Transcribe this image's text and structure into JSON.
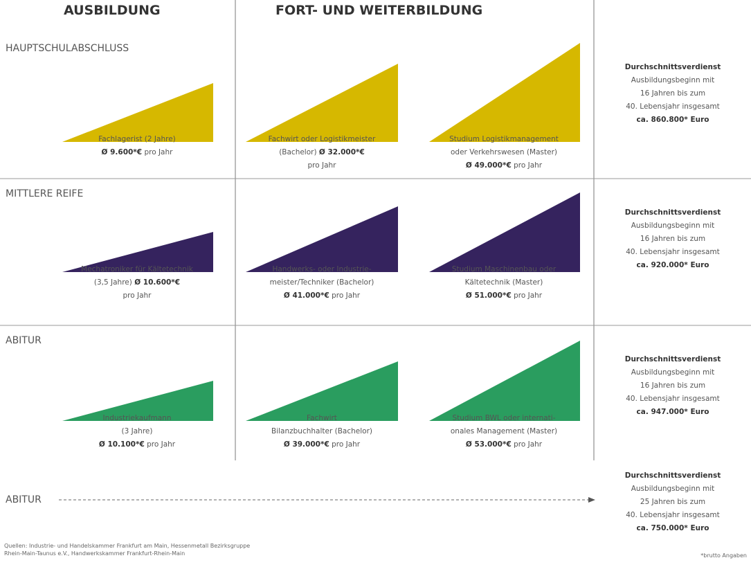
{
  "header": {
    "col1": "AUSBILDUNG",
    "col2": "FORT- UND WEITERBILDUNG"
  },
  "rows": [
    {
      "label": "HAUPTSCHULABSCHLUSS",
      "color": "#d6b800",
      "cells": [
        {
          "lines": [
            [
              {
                "text": "Fachlagerist (2 Jahre)",
                "bold": false
              }
            ],
            [
              {
                "text": "Ø 9.600*€",
                "bold": true
              },
              {
                "text": " pro Jahr",
                "bold": false
              }
            ]
          ]
        },
        {
          "lines": [
            [
              {
                "text": "Fachwirt oder Logistikmeister",
                "bold": false
              }
            ],
            [
              {
                "text": "(Bachelor) ",
                "bold": false
              },
              {
                "text": "Ø 32.000*€",
                "bold": true
              }
            ],
            [
              {
                "text": "pro Jahr",
                "bold": false
              }
            ]
          ]
        },
        {
          "lines": [
            [
              {
                "text": "Studium Logistikmanagement",
                "bold": false
              }
            ],
            [
              {
                "text": "oder Verkehrswesen (Master)",
                "bold": false
              }
            ],
            [
              {
                "text": "Ø 49.000*€",
                "bold": true
              },
              {
                "text": " pro Jahr",
                "bold": false
              }
            ]
          ]
        }
      ],
      "summary": [
        [
          {
            "text": "Durchschnittsverdienst",
            "bold": true
          }
        ],
        [
          {
            "text": "Ausbildungsbeginn mit",
            "bold": false
          }
        ],
        [
          {
            "text": "16 Jahren bis zum",
            "bold": false
          }
        ],
        [
          {
            "text": "40. Lebensjahr insgesamt",
            "bold": false
          }
        ],
        [
          {
            "text": "ca. 860.800* Euro",
            "bold": true
          }
        ]
      ]
    },
    {
      "label": "MITTLERE REIFE",
      "color": "#35235e",
      "cells": [
        {
          "lines": [
            [
              {
                "text": "Mechatroniker für Kältetechnik",
                "bold": false
              }
            ],
            [
              {
                "text": "(3,5 Jahre) ",
                "bold": false
              },
              {
                "text": "Ø 10.600*€",
                "bold": true
              }
            ],
            [
              {
                "text": "pro Jahr",
                "bold": false
              }
            ]
          ]
        },
        {
          "lines": [
            [
              {
                "text": "Handwerks- oder Industrie-",
                "bold": false
              }
            ],
            [
              {
                "text": "meister/Techniker (Bachelor)",
                "bold": false
              }
            ],
            [
              {
                "text": "Ø 41.000*€",
                "bold": true
              },
              {
                "text": " pro Jahr",
                "bold": false
              }
            ]
          ]
        },
        {
          "lines": [
            [
              {
                "text": "Studium Maschinenbau oder",
                "bold": false
              }
            ],
            [
              {
                "text": "Kältetechnik (Master)",
                "bold": false
              }
            ],
            [
              {
                "text": "Ø 51.000*€",
                "bold": true
              },
              {
                "text": " pro Jahr",
                "bold": false
              }
            ]
          ]
        }
      ],
      "summary": [
        [
          {
            "text": "Durchschnittsverdienst",
            "bold": true
          }
        ],
        [
          {
            "text": "Ausbildungsbeginn mit",
            "bold": false
          }
        ],
        [
          {
            "text": "16 Jahren bis zum",
            "bold": false
          }
        ],
        [
          {
            "text": "40. Lebensjahr insgesamt",
            "bold": false
          }
        ],
        [
          {
            "text": "ca. 920.000* Euro",
            "bold": true
          }
        ]
      ]
    },
    {
      "label": "ABITUR",
      "color": "#2a9d5f",
      "cells": [
        {
          "lines": [
            [
              {
                "text": "Industriekaufmann",
                "bold": false
              }
            ],
            [
              {
                "text": "(3 Jahre)",
                "bold": false
              }
            ],
            [
              {
                "text": "Ø 10.100*€",
                "bold": true
              },
              {
                "text": " pro Jahr",
                "bold": false
              }
            ]
          ]
        },
        {
          "lines": [
            [
              {
                "text": "Fachwirt",
                "bold": false
              }
            ],
            [
              {
                "text": "Bilanzbuchhalter (Bachelor)",
                "bold": false
              }
            ],
            [
              {
                "text": "Ø 39.000*€",
                "bold": true
              },
              {
                "text": " pro Jahr",
                "bold": false
              }
            ]
          ]
        },
        {
          "lines": [
            [
              {
                "text": "Studium BWL oder internati-",
                "bold": false
              }
            ],
            [
              {
                "text": "onales Management (Master)",
                "bold": false
              }
            ],
            [
              {
                "text": "Ø 53.000*€",
                "bold": true
              },
              {
                "text": " pro Jahr",
                "bold": false
              }
            ]
          ]
        }
      ],
      "summary": [
        [
          {
            "text": "Durchschnittsverdienst",
            "bold": true
          }
        ],
        [
          {
            "text": "Ausbildungsbeginn mit",
            "bold": false
          }
        ],
        [
          {
            "text": "16 Jahren bis zum",
            "bold": false
          }
        ],
        [
          {
            "text": "40. Lebensjahr insgesamt",
            "bold": false
          }
        ],
        [
          {
            "text": "ca. 947.000* Euro",
            "bold": true
          }
        ]
      ]
    }
  ],
  "direct": {
    "label": "ABITUR",
    "summary": [
      [
        {
          "text": "Durchschnittsverdienst",
          "bold": true
        }
      ],
      [
        {
          "text": "Ausbildungsbeginn mit",
          "bold": false
        }
      ],
      [
        {
          "text": "25 Jahren bis zum",
          "bold": false
        }
      ],
      [
        {
          "text": "40. Lebensjahr insgesamt",
          "bold": false
        }
      ],
      [
        {
          "text": "ca. 750.000* Euro",
          "bold": true
        }
      ]
    ]
  },
  "footer": {
    "sources": [
      "Quellen: Industrie- und Handelskammer Frankfurt am Main, Hessenmetall Bezirksgruppe",
      "Rhein-Main-Taunus e.V., Handwerkskammer Frankfurt-Rhein-Main"
    ],
    "note": "*brutto Angaben"
  }
}
